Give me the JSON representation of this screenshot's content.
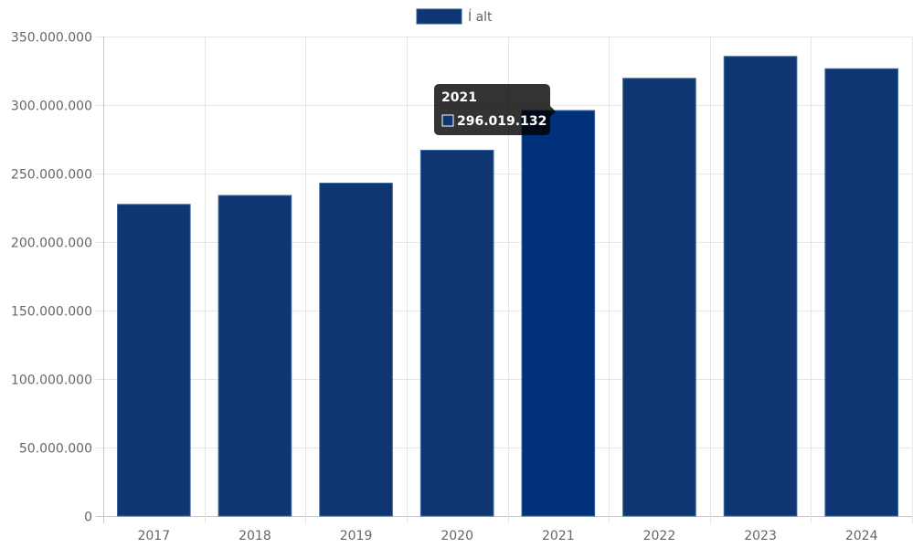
{
  "chart_data": {
    "type": "bar",
    "categories": [
      "2017",
      "2018",
      "2019",
      "2020",
      "2021",
      "2022",
      "2023",
      "2024"
    ],
    "series": [
      {
        "name": "Í alt",
        "values": [
          227500000,
          234000000,
          243000000,
          267000000,
          296019132,
          319500000,
          335500000,
          326500000
        ],
        "color": "#0f3672",
        "highlight_color": "#00307a"
      }
    ],
    "ylim": [
      0,
      350000000
    ],
    "yticks": [
      "0",
      "50.000.000",
      "100.000.000",
      "150.000.000",
      "200.000.000",
      "250.000.000",
      "300.000.000",
      "350.000.000"
    ],
    "ytick_values": [
      0,
      50000000,
      100000000,
      150000000,
      200000000,
      250000000,
      300000000,
      350000000
    ],
    "grid": true,
    "legend": {
      "position": "top",
      "label": "Í alt"
    },
    "tooltip": {
      "title": "2021",
      "value": "296.019.132",
      "active_index": 4
    }
  }
}
